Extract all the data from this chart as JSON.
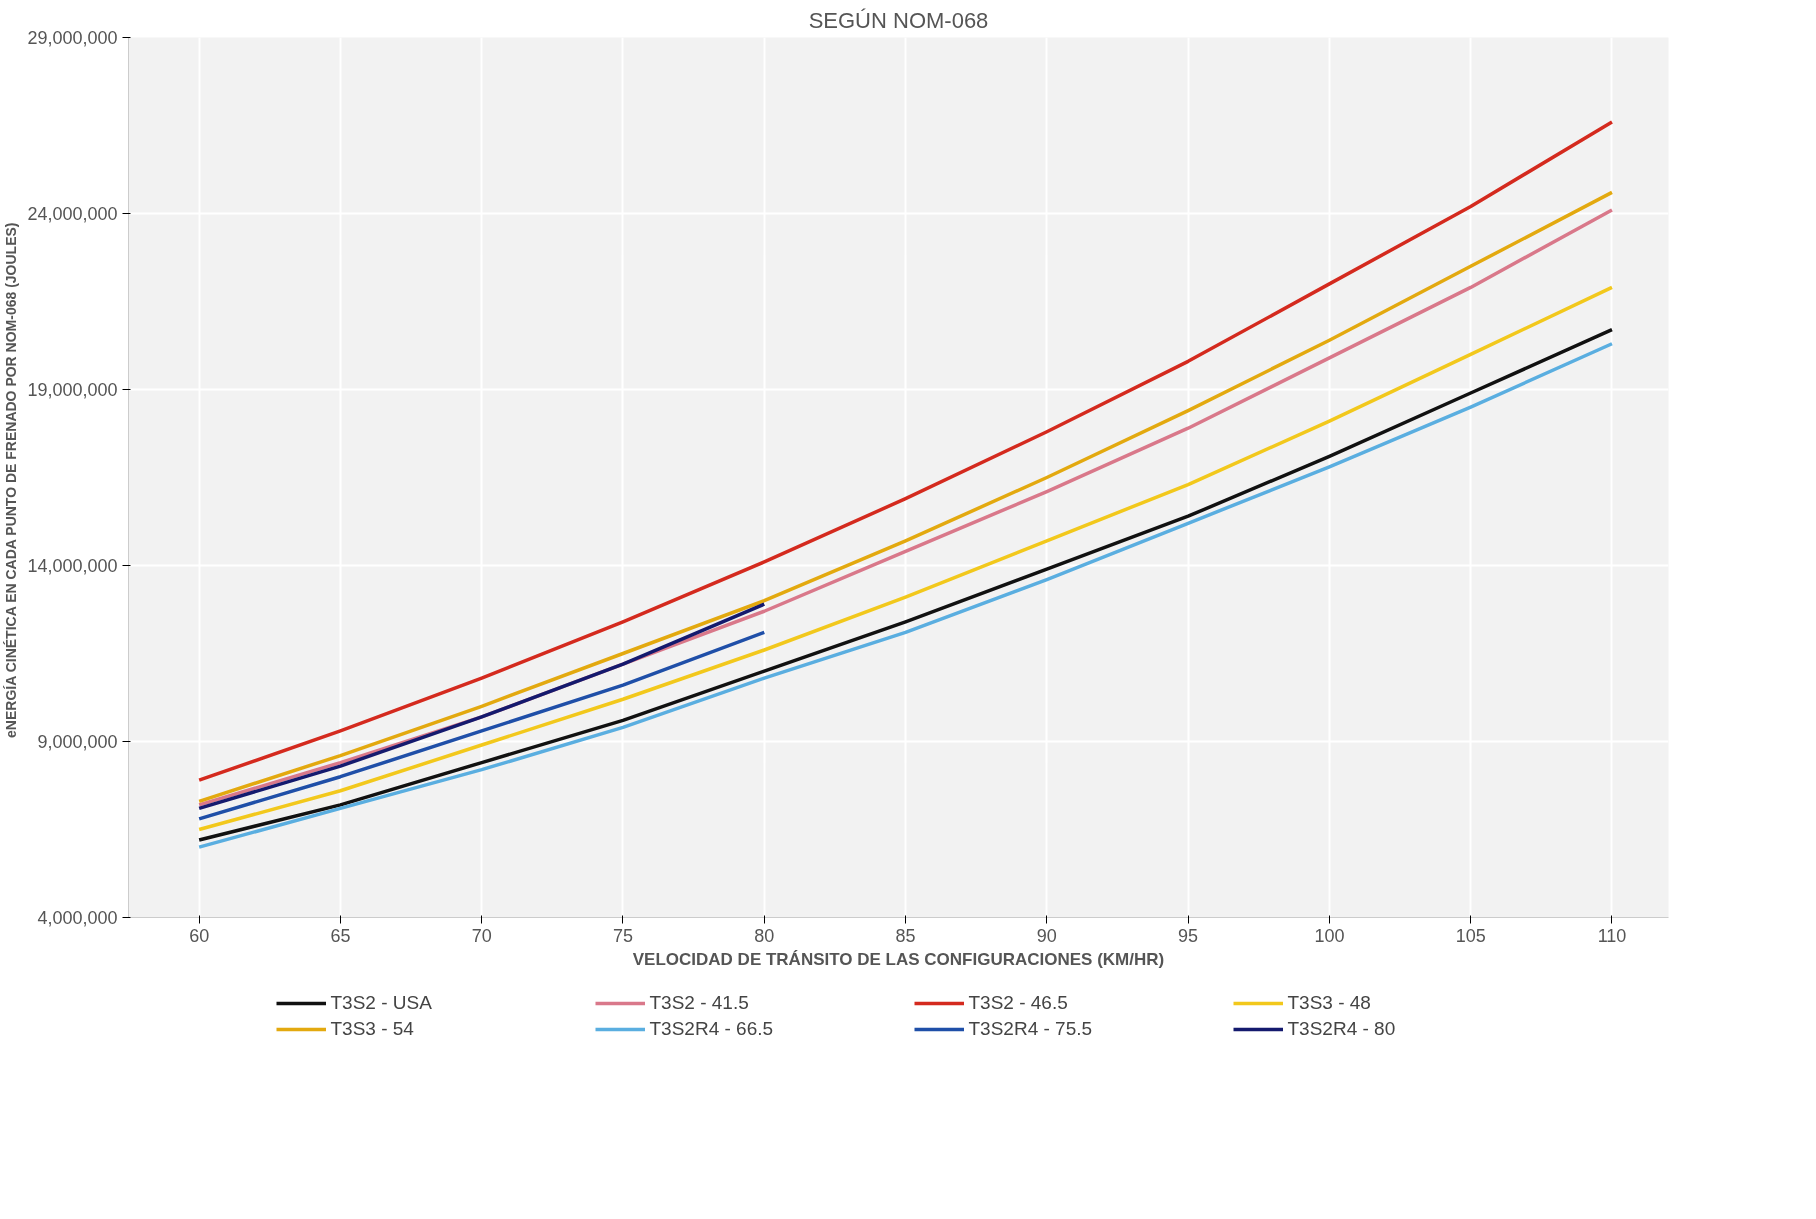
{
  "chart_data": {
    "type": "line",
    "title": "SEGÚN NOM-068",
    "xlabel": "VELOCIDAD DE TRÁNSITO DE LAS CONFIGURACIONES (KM/HR)",
    "ylabel": "eNERGÍA CINÉTICA EN CADA  PUNTO DE FRENADO POR NOM-068 (JOULES)",
    "x": [
      60,
      65,
      70,
      75,
      80,
      85,
      90,
      95,
      100,
      105,
      110
    ],
    "xlim": [
      57.5,
      112
    ],
    "xticks": [
      60,
      65,
      70,
      75,
      80,
      85,
      90,
      95,
      100,
      105,
      110
    ],
    "ylim": [
      4000000,
      29000000
    ],
    "yticks": [
      {
        "value": 4000000,
        "label": "4,000,000"
      },
      {
        "value": 9000000,
        "label": "9,000,000"
      },
      {
        "value": 14000000,
        "label": "14,000,000"
      },
      {
        "value": 19000000,
        "label": "19,000,000"
      },
      {
        "value": 24000000,
        "label": "24,000,000"
      },
      {
        "value": 29000000,
        "label": "29,000,000"
      }
    ],
    "grid": true,
    "legend": "bottom",
    "marker": "none",
    "line_style": "solid",
    "series": [
      {
        "name": "T3S2 - USA",
        "color": "#111111",
        "values": [
          6200000,
          7200000,
          8400000,
          9600000,
          11000000,
          12400000,
          13900000,
          15400000,
          17100000,
          18900000,
          20700000
        ]
      },
      {
        "name": "T3S2 - 41.5",
        "color": "#d9788a",
        "values": [
          7200000,
          8400000,
          9700000,
          11200000,
          12700000,
          14400000,
          16100000,
          17900000,
          19900000,
          21900000,
          24100000
        ]
      },
      {
        "name": "T3S2 - 46.5",
        "color": "#d42a1e",
        "values": [
          7900000,
          9300000,
          10800000,
          12400000,
          14100000,
          15900000,
          17800000,
          19800000,
          22000000,
          24200000,
          26600000
        ]
      },
      {
        "name": "T3S3 - 48",
        "color": "#f2c81c",
        "values": [
          6500000,
          7600000,
          8900000,
          10200000,
          11600000,
          13100000,
          14700000,
          16300000,
          18100000,
          20000000,
          21900000
        ]
      },
      {
        "name": "T3S3 - 54",
        "color": "#e3a90f",
        "values": [
          7300000,
          8600000,
          10000000,
          11500000,
          13000000,
          14700000,
          16500000,
          18400000,
          20400000,
          22500000,
          24600000
        ]
      },
      {
        "name": "T3S2R4 - 66.5",
        "color": "#5aaee0",
        "values": [
          6000000,
          7100000,
          8200000,
          9400000,
          10800000,
          12100000,
          13600000,
          15200000,
          16800000,
          18500000,
          20300000
        ]
      },
      {
        "name": "T3S2R4 - 75.5",
        "color": "#1f4fa8",
        "x": [
          60,
          65,
          70,
          75,
          80
        ],
        "values": [
          6800000,
          8000000,
          9300000,
          10600000,
          12100000
        ]
      },
      {
        "name": "T3S2R4 - 80",
        "color": "#141a6e",
        "x": [
          60,
          65,
          70,
          75,
          80
        ],
        "values": [
          7100000,
          8300000,
          9700000,
          11200000,
          12900000
        ]
      }
    ]
  }
}
